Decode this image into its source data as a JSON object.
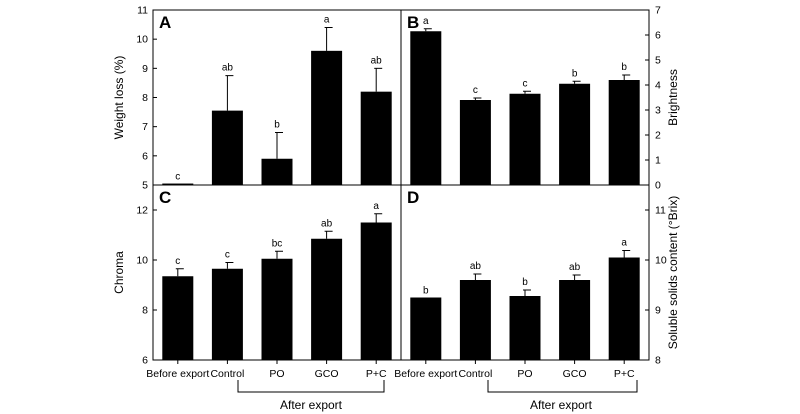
{
  "categories": [
    "Before export",
    "Control",
    "PO",
    "GCO",
    "P+C"
  ],
  "group_label": "After export",
  "chart_data": [
    {
      "type": "bar",
      "panel": "A",
      "ylabel": "Weight loss (%)",
      "axis_side": "left",
      "ylim": [
        5,
        11
      ],
      "ticks": [
        5,
        6,
        7,
        8,
        9,
        10,
        11
      ],
      "tick_labels": [
        "5",
        "6",
        "7",
        "8",
        "9",
        "10",
        "11"
      ],
      "values": [
        5.05,
        7.55,
        5.9,
        9.6,
        8.2
      ],
      "errors": [
        0,
        1.2,
        0.9,
        0.8,
        0.8
      ],
      "significance": [
        "c",
        "ab",
        "b",
        "a",
        "ab"
      ]
    },
    {
      "type": "bar",
      "panel": "B",
      "ylabel": "Brightness",
      "axis_side": "right",
      "ylim": [
        0,
        7
      ],
      "ticks": [
        0,
        1,
        2,
        3,
        4,
        5,
        6,
        7
      ],
      "tick_labels": [
        "0",
        "1",
        "2",
        "3",
        "4",
        "5",
        "6",
        "7"
      ],
      "values": [
        6.15,
        3.4,
        3.65,
        4.05,
        4.2
      ],
      "errors": [
        0.1,
        0.08,
        0.1,
        0.1,
        0.2
      ],
      "significance": [
        "a",
        "c",
        "c",
        "b",
        "b"
      ]
    },
    {
      "type": "bar",
      "panel": "C",
      "ylabel": "Chroma",
      "axis_side": "left",
      "ylim": [
        6,
        13
      ],
      "ticks": [
        6,
        8,
        10,
        12
      ],
      "tick_labels": [
        "6",
        "8",
        "10",
        "12"
      ],
      "values": [
        9.35,
        9.65,
        10.05,
        10.85,
        11.5
      ],
      "errors": [
        0.3,
        0.25,
        0.3,
        0.3,
        0.35
      ],
      "significance": [
        "c",
        "c",
        "bc",
        "ab",
        "a"
      ]
    },
    {
      "type": "bar",
      "panel": "D",
      "ylabel": "Soluble solids content (°Brix)",
      "axis_side": "right",
      "ylim": [
        8,
        11.5
      ],
      "ticks": [
        8,
        9,
        10,
        11
      ],
      "tick_labels": [
        "8",
        "9",
        "10",
        "11"
      ],
      "values": [
        9.25,
        9.6,
        9.28,
        9.6,
        10.05
      ],
      "errors": [
        0,
        0.12,
        0.12,
        0.1,
        0.14
      ],
      "significance": [
        "b",
        "ab",
        "b",
        "ab",
        "a"
      ]
    }
  ]
}
